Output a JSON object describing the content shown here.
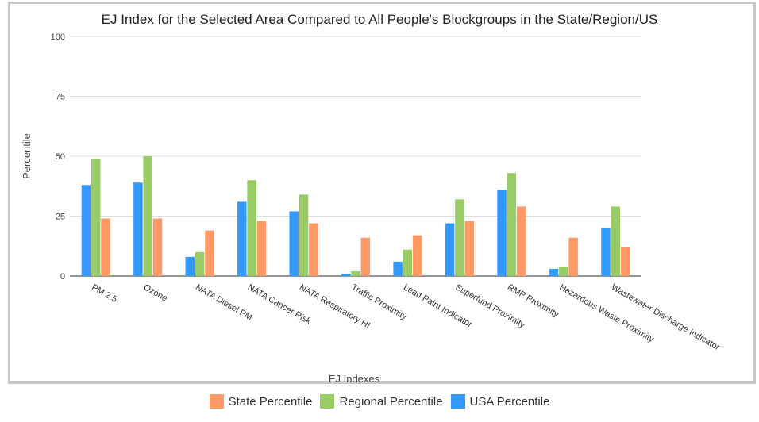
{
  "chart_data": {
    "type": "bar",
    "title": "EJ Index for the Selected Area Compared to All People's Blockgroups in the State/Region/US",
    "xlabel": "EJ Indexes",
    "ylabel": "Percentile",
    "ylim": [
      0,
      100
    ],
    "yticks": [
      0,
      25,
      50,
      75,
      100
    ],
    "grid": true,
    "legend_position": "bottom",
    "categories": [
      "PM 2.5",
      "Ozone",
      "NATA Diesel PM",
      "NATA Cancer Risk",
      "NATA Respiratory HI",
      "Traffic Proximity",
      "Lead Paint Indicator",
      "Superfund Proximity",
      "RMP Proximity",
      "Hazardous Waste Proximity",
      "Wastewater Discharge Indicator"
    ],
    "series": [
      {
        "name": "USA Percentile",
        "color": "#3399ff",
        "values": [
          38,
          39,
          8,
          31,
          27,
          1,
          6,
          22,
          36,
          3,
          20
        ]
      },
      {
        "name": "Regional Percentile",
        "color": "#99cc66",
        "values": [
          49,
          50,
          10,
          40,
          34,
          2,
          11,
          32,
          43,
          4,
          29
        ]
      },
      {
        "name": "State Percentile",
        "color": "#ff9966",
        "values": [
          24,
          24,
          19,
          23,
          22,
          16,
          17,
          23,
          29,
          16,
          12
        ]
      }
    ]
  },
  "legend": {
    "items": [
      {
        "label": "State Percentile",
        "color": "#ff9966"
      },
      {
        "label": "Regional Percentile",
        "color": "#99cc66"
      },
      {
        "label": "USA  Percentile",
        "color": "#3399ff"
      }
    ]
  }
}
